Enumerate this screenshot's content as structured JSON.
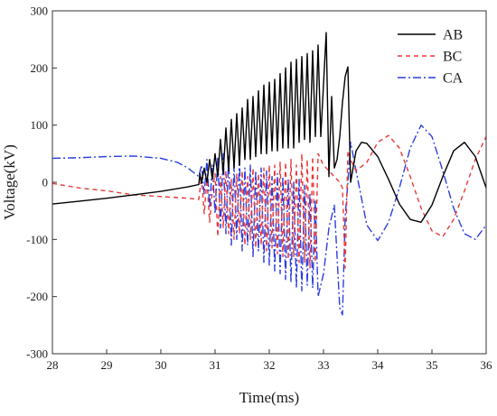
{
  "chart_data": {
    "type": "line",
    "xlabel": "Time(ms)",
    "ylabel": "Voltage(kV)",
    "xlim": [
      28,
      36
    ],
    "ylim": [
      -300,
      300
    ],
    "x_ticks": [
      28,
      29,
      30,
      31,
      32,
      33,
      34,
      35,
      36
    ],
    "y_ticks": [
      -300,
      -200,
      -100,
      0,
      100,
      200,
      300
    ],
    "legend_position": "top-right",
    "grid": false,
    "series": [
      {
        "name": "AB",
        "color": "#000000",
        "dash": "solid",
        "points": [
          [
            28.0,
            -38
          ],
          [
            28.5,
            -33
          ],
          [
            29.0,
            -28
          ],
          [
            29.5,
            -22
          ],
          [
            30.0,
            -16
          ],
          [
            30.5,
            -8
          ],
          [
            30.7,
            -4
          ],
          [
            30.72,
            15
          ],
          [
            30.75,
            -2
          ],
          [
            30.8,
            25
          ],
          [
            30.85,
            0
          ],
          [
            30.9,
            40
          ],
          [
            30.95,
            5
          ],
          [
            31.0,
            50
          ],
          [
            31.05,
            10
          ],
          [
            31.1,
            75
          ],
          [
            31.15,
            15
          ],
          [
            31.2,
            95
          ],
          [
            31.25,
            20
          ],
          [
            31.3,
            110
          ],
          [
            31.35,
            25
          ],
          [
            31.4,
            120
          ],
          [
            31.45,
            30
          ],
          [
            31.5,
            130
          ],
          [
            31.55,
            40
          ],
          [
            31.6,
            145
          ],
          [
            31.65,
            40
          ],
          [
            31.7,
            150
          ],
          [
            31.75,
            45
          ],
          [
            31.8,
            160
          ],
          [
            31.85,
            50
          ],
          [
            31.9,
            170
          ],
          [
            31.95,
            50
          ],
          [
            32.0,
            175
          ],
          [
            32.05,
            55
          ],
          [
            32.1,
            180
          ],
          [
            32.15,
            55
          ],
          [
            32.2,
            190
          ],
          [
            32.25,
            60
          ],
          [
            32.3,
            200
          ],
          [
            32.35,
            60
          ],
          [
            32.4,
            210
          ],
          [
            32.45,
            60
          ],
          [
            32.5,
            215
          ],
          [
            32.55,
            70
          ],
          [
            32.6,
            220
          ],
          [
            32.65,
            75
          ],
          [
            32.7,
            225
          ],
          [
            32.75,
            70
          ],
          [
            32.8,
            230
          ],
          [
            32.85,
            80
          ],
          [
            32.9,
            240
          ],
          [
            32.95,
            80
          ],
          [
            33.05,
            262
          ],
          [
            33.1,
            10
          ],
          [
            33.15,
            150
          ],
          [
            33.2,
            25
          ],
          [
            33.25,
            40
          ],
          [
            33.3,
            80
          ],
          [
            33.35,
            140
          ],
          [
            33.4,
            185
          ],
          [
            33.45,
            202
          ],
          [
            33.5,
            0
          ],
          [
            33.6,
            55
          ],
          [
            33.7,
            70
          ],
          [
            33.8,
            68
          ],
          [
            34.0,
            45
          ],
          [
            34.2,
            5
          ],
          [
            34.4,
            -38
          ],
          [
            34.6,
            -65
          ],
          [
            34.8,
            -70
          ],
          [
            35.0,
            -40
          ],
          [
            35.2,
            10
          ],
          [
            35.4,
            55
          ],
          [
            35.6,
            70
          ],
          [
            35.8,
            45
          ],
          [
            36.0,
            -10
          ]
        ]
      },
      {
        "name": "BC",
        "color": "#e83838",
        "dash": "5,4",
        "points": [
          [
            28.0,
            -2
          ],
          [
            28.5,
            -10
          ],
          [
            29.0,
            -15
          ],
          [
            29.5,
            -22
          ],
          [
            30.0,
            -25
          ],
          [
            30.5,
            -28
          ],
          [
            30.7,
            -30
          ],
          [
            30.75,
            10
          ],
          [
            30.8,
            -55
          ],
          [
            30.85,
            5
          ],
          [
            30.9,
            -70
          ],
          [
            30.95,
            -15
          ],
          [
            31.0,
            15
          ],
          [
            31.05,
            -95
          ],
          [
            31.1,
            10
          ],
          [
            31.15,
            -80
          ],
          [
            31.2,
            20
          ],
          [
            31.25,
            -90
          ],
          [
            31.3,
            5
          ],
          [
            31.35,
            -100
          ],
          [
            31.4,
            15
          ],
          [
            31.45,
            -90
          ],
          [
            31.5,
            20
          ],
          [
            31.55,
            -110
          ],
          [
            31.6,
            10
          ],
          [
            31.65,
            -100
          ],
          [
            31.7,
            25
          ],
          [
            31.75,
            -115
          ],
          [
            31.8,
            15
          ],
          [
            31.85,
            -110
          ],
          [
            31.9,
            25
          ],
          [
            31.95,
            -120
          ],
          [
            32.0,
            30
          ],
          [
            32.05,
            -115
          ],
          [
            32.1,
            30
          ],
          [
            32.15,
            -125
          ],
          [
            32.2,
            35
          ],
          [
            32.25,
            -130
          ],
          [
            32.3,
            35
          ],
          [
            32.35,
            -135
          ],
          [
            32.4,
            40
          ],
          [
            32.45,
            -130
          ],
          [
            32.5,
            30
          ],
          [
            32.55,
            -140
          ],
          [
            32.6,
            50
          ],
          [
            32.65,
            -140
          ],
          [
            32.7,
            40
          ],
          [
            32.75,
            -150
          ],
          [
            32.8,
            45
          ],
          [
            32.85,
            -140
          ],
          [
            32.9,
            50
          ],
          [
            33.0,
            30
          ],
          [
            33.1,
            20
          ],
          [
            33.2,
            10
          ],
          [
            33.3,
            0
          ],
          [
            33.35,
            -10
          ],
          [
            33.4,
            -150
          ],
          [
            33.45,
            55
          ],
          [
            33.5,
            40
          ],
          [
            33.6,
            20
          ],
          [
            33.8,
            35
          ],
          [
            34.0,
            70
          ],
          [
            34.2,
            82
          ],
          [
            34.4,
            60
          ],
          [
            34.6,
            10
          ],
          [
            34.8,
            -45
          ],
          [
            35.0,
            -85
          ],
          [
            35.2,
            -95
          ],
          [
            35.4,
            -65
          ],
          [
            35.6,
            -15
          ],
          [
            35.8,
            40
          ],
          [
            36.0,
            80
          ]
        ]
      },
      {
        "name": "CA",
        "color": "#2b3de0",
        "dash": "9,3,2,3",
        "points": [
          [
            28.0,
            42
          ],
          [
            28.5,
            43
          ],
          [
            29.0,
            45
          ],
          [
            29.5,
            46
          ],
          [
            30.0,
            42
          ],
          [
            30.3,
            35
          ],
          [
            30.5,
            25
          ],
          [
            30.7,
            10
          ],
          [
            30.75,
            30
          ],
          [
            30.8,
            -20
          ],
          [
            30.85,
            40
          ],
          [
            30.9,
            -45
          ],
          [
            30.95,
            30
          ],
          [
            31.0,
            -55
          ],
          [
            31.05,
            45
          ],
          [
            31.1,
            -80
          ],
          [
            31.15,
            50
          ],
          [
            31.2,
            -90
          ],
          [
            31.25,
            45
          ],
          [
            31.3,
            -110
          ],
          [
            31.35,
            30
          ],
          [
            31.4,
            -100
          ],
          [
            31.45,
            40
          ],
          [
            31.5,
            -120
          ],
          [
            31.55,
            25
          ],
          [
            31.6,
            -110
          ],
          [
            31.65,
            30
          ],
          [
            31.7,
            -130
          ],
          [
            31.75,
            20
          ],
          [
            31.8,
            -120
          ],
          [
            31.85,
            25
          ],
          [
            31.9,
            -140
          ],
          [
            31.95,
            20
          ],
          [
            32.0,
            -145
          ],
          [
            32.05,
            10
          ],
          [
            32.1,
            -155
          ],
          [
            32.15,
            15
          ],
          [
            32.2,
            -160
          ],
          [
            32.25,
            10
          ],
          [
            32.3,
            -170
          ],
          [
            32.35,
            5
          ],
          [
            32.4,
            -175
          ],
          [
            32.45,
            0
          ],
          [
            32.5,
            -185
          ],
          [
            32.55,
            5
          ],
          [
            32.6,
            -190
          ],
          [
            32.65,
            -5
          ],
          [
            32.7,
            -180
          ],
          [
            32.75,
            -20
          ],
          [
            32.8,
            -185
          ],
          [
            32.85,
            -30
          ],
          [
            32.9,
            -200
          ],
          [
            33.0,
            -160
          ],
          [
            33.1,
            -80
          ],
          [
            33.2,
            -40
          ],
          [
            33.3,
            -220
          ],
          [
            33.35,
            -232
          ],
          [
            33.4,
            -60
          ],
          [
            33.45,
            0
          ],
          [
            33.5,
            70
          ],
          [
            33.6,
            20
          ],
          [
            33.8,
            -75
          ],
          [
            34.0,
            -102
          ],
          [
            34.2,
            -70
          ],
          [
            34.4,
            -10
          ],
          [
            34.6,
            60
          ],
          [
            34.8,
            100
          ],
          [
            35.0,
            80
          ],
          [
            35.2,
            20
          ],
          [
            35.4,
            -45
          ],
          [
            35.6,
            -90
          ],
          [
            35.8,
            -100
          ],
          [
            36.0,
            -75
          ]
        ]
      }
    ]
  }
}
